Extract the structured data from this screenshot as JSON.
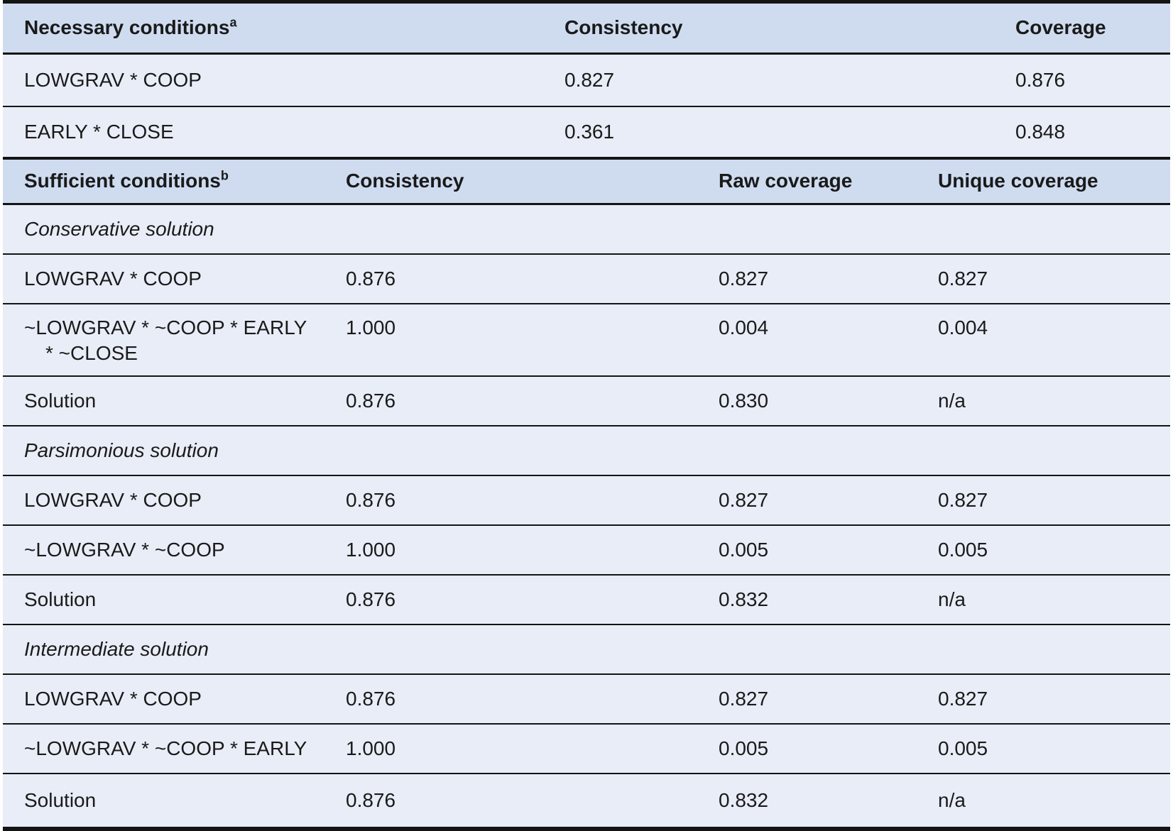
{
  "colors": {
    "header_background": "#cfdcf0",
    "row_background": "#e8edf7",
    "border": "#141414"
  },
  "necessary": {
    "title": "Necessary conditions",
    "title_superscript": "a",
    "col_consistency": "Consistency",
    "col_coverage": "Coverage",
    "rows": [
      {
        "condition": "LOWGRAV * COOP",
        "consistency": "0.827",
        "coverage": "0.876"
      },
      {
        "condition": "EARLY * CLOSE",
        "consistency": "0.361",
        "coverage": "0.848"
      }
    ]
  },
  "sufficient": {
    "title": "Sufficient conditions",
    "title_superscript": "b",
    "col_consistency": "Consistency",
    "col_raw": "Raw coverage",
    "col_unique": "Unique coverage",
    "sections": [
      {
        "title": "Conservative solution",
        "rows": [
          {
            "condition": "LOWGRAV * COOP",
            "consistency": "0.876",
            "raw_coverage": "0.827",
            "unique_coverage": "0.827"
          },
          {
            "condition": "~LOWGRAV * ~COOP * EARLY * ~CLOSE",
            "consistency": "1.000",
            "raw_coverage": "0.004",
            "unique_coverage": "0.004"
          },
          {
            "condition": "Solution",
            "consistency": "0.876",
            "raw_coverage": "0.830",
            "unique_coverage": "n/a"
          }
        ]
      },
      {
        "title": "Parsimonious solution",
        "rows": [
          {
            "condition": "LOWGRAV * COOP",
            "consistency": "0.876",
            "raw_coverage": "0.827",
            "unique_coverage": "0.827"
          },
          {
            "condition": "~LOWGRAV * ~COOP",
            "consistency": "1.000",
            "raw_coverage": "0.005",
            "unique_coverage": "0.005"
          },
          {
            "condition": "Solution",
            "consistency": "0.876",
            "raw_coverage": "0.832",
            "unique_coverage": "n/a"
          }
        ]
      },
      {
        "title": "Intermediate solution",
        "rows": [
          {
            "condition": "LOWGRAV * COOP",
            "consistency": "0.876",
            "raw_coverage": "0.827",
            "unique_coverage": "0.827"
          },
          {
            "condition": "~LOWGRAV * ~COOP * EARLY",
            "consistency": "1.000",
            "raw_coverage": "0.005",
            "unique_coverage": "0.005"
          },
          {
            "condition": "Solution",
            "consistency": "0.876",
            "raw_coverage": "0.832",
            "unique_coverage": "n/a"
          }
        ]
      }
    ]
  }
}
